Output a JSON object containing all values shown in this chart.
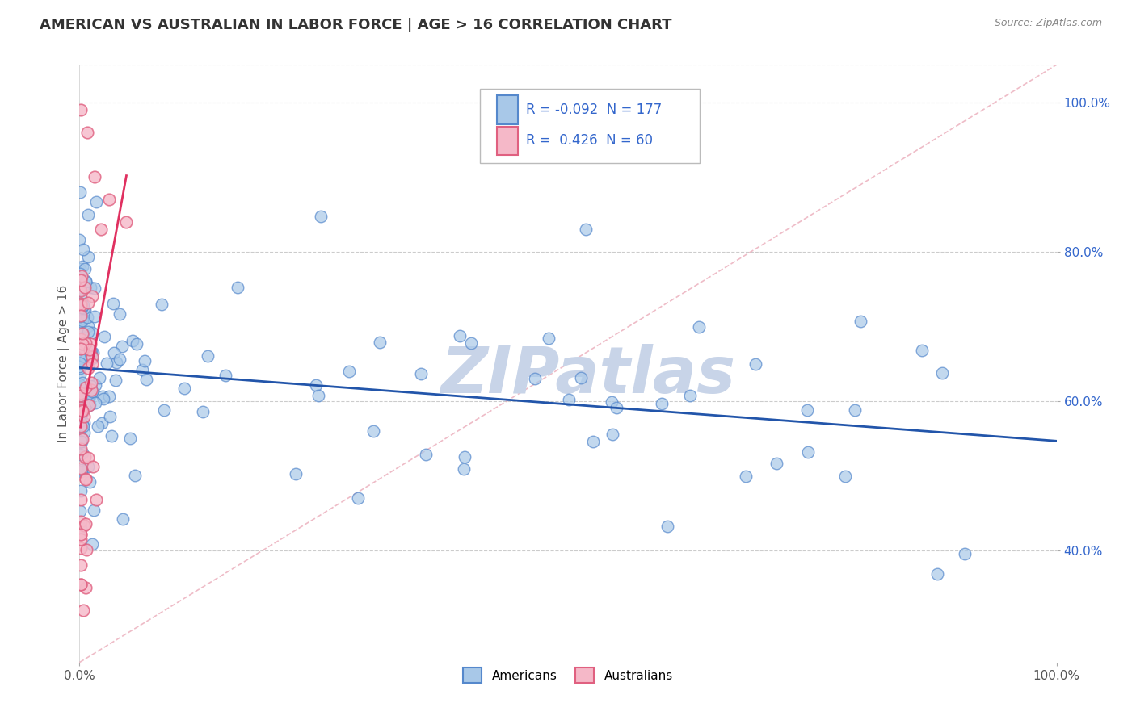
{
  "title": "AMERICAN VS AUSTRALIAN IN LABOR FORCE | AGE > 16 CORRELATION CHART",
  "source": "Source: ZipAtlas.com",
  "ylabel": "In Labor Force | Age > 16",
  "xlim": [
    0,
    1.0
  ],
  "ylim": [
    0.25,
    1.05
  ],
  "xticks": [
    0.0,
    1.0
  ],
  "xticklabels": [
    "0.0%",
    "100.0%"
  ],
  "yticks": [
    0.4,
    0.6,
    0.8,
    1.0
  ],
  "yticklabels": [
    "40.0%",
    "60.0%",
    "80.0%",
    "100.0%"
  ],
  "american_color": "#a8c8e8",
  "american_edge": "#5588cc",
  "australian_color": "#f5b8c8",
  "australian_edge": "#e06080",
  "trend_american_color": "#2255aa",
  "trend_australian_color": "#e03060",
  "reference_line_color": "#e8a0b0",
  "watermark": "ZIPatlas",
  "watermark_color": "#c8d4e8",
  "legend_R_american": "-0.092",
  "legend_N_american": "177",
  "legend_R_australian": "0.426",
  "legend_N_australian": "60",
  "legend_text_color": "#3366cc",
  "background_color": "#ffffff",
  "grid_color": "#cccccc",
  "title_color": "#333333",
  "source_color": "#888888",
  "ylabel_color": "#555555",
  "ytick_color": "#3366cc",
  "xtick_color": "#555555"
}
